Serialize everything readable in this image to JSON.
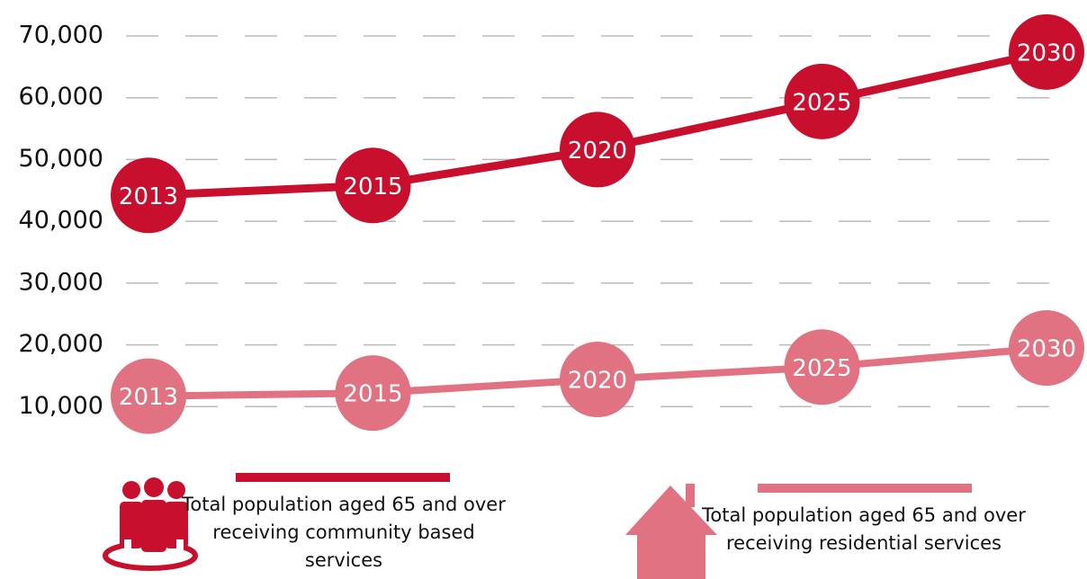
{
  "chart_data": {
    "type": "line",
    "categories": [
      "2013",
      "2015",
      "2020",
      "2025",
      "2030"
    ],
    "series": [
      {
        "name": "Total population aged 65 and over receiving community based services",
        "color": "#c8102e",
        "values": [
          44200,
          45800,
          51600,
          59400,
          67400
        ]
      },
      {
        "name": "Total population aged 65 and over receiving residential services",
        "color": "#e07282",
        "values": [
          11700,
          12200,
          14400,
          16400,
          19500
        ]
      }
    ],
    "ylim": [
      0,
      70000
    ],
    "yticks": [
      {
        "value": 10000,
        "label": "10,000"
      },
      {
        "value": 20000,
        "label": "20,000"
      },
      {
        "value": 30000,
        "label": "30,000"
      },
      {
        "value": 40000,
        "label": "40,000"
      },
      {
        "value": 50000,
        "label": "50,000"
      },
      {
        "value": 60000,
        "label": "60,000"
      },
      {
        "value": 70000,
        "label": "70,000"
      }
    ],
    "grid": true
  }
}
